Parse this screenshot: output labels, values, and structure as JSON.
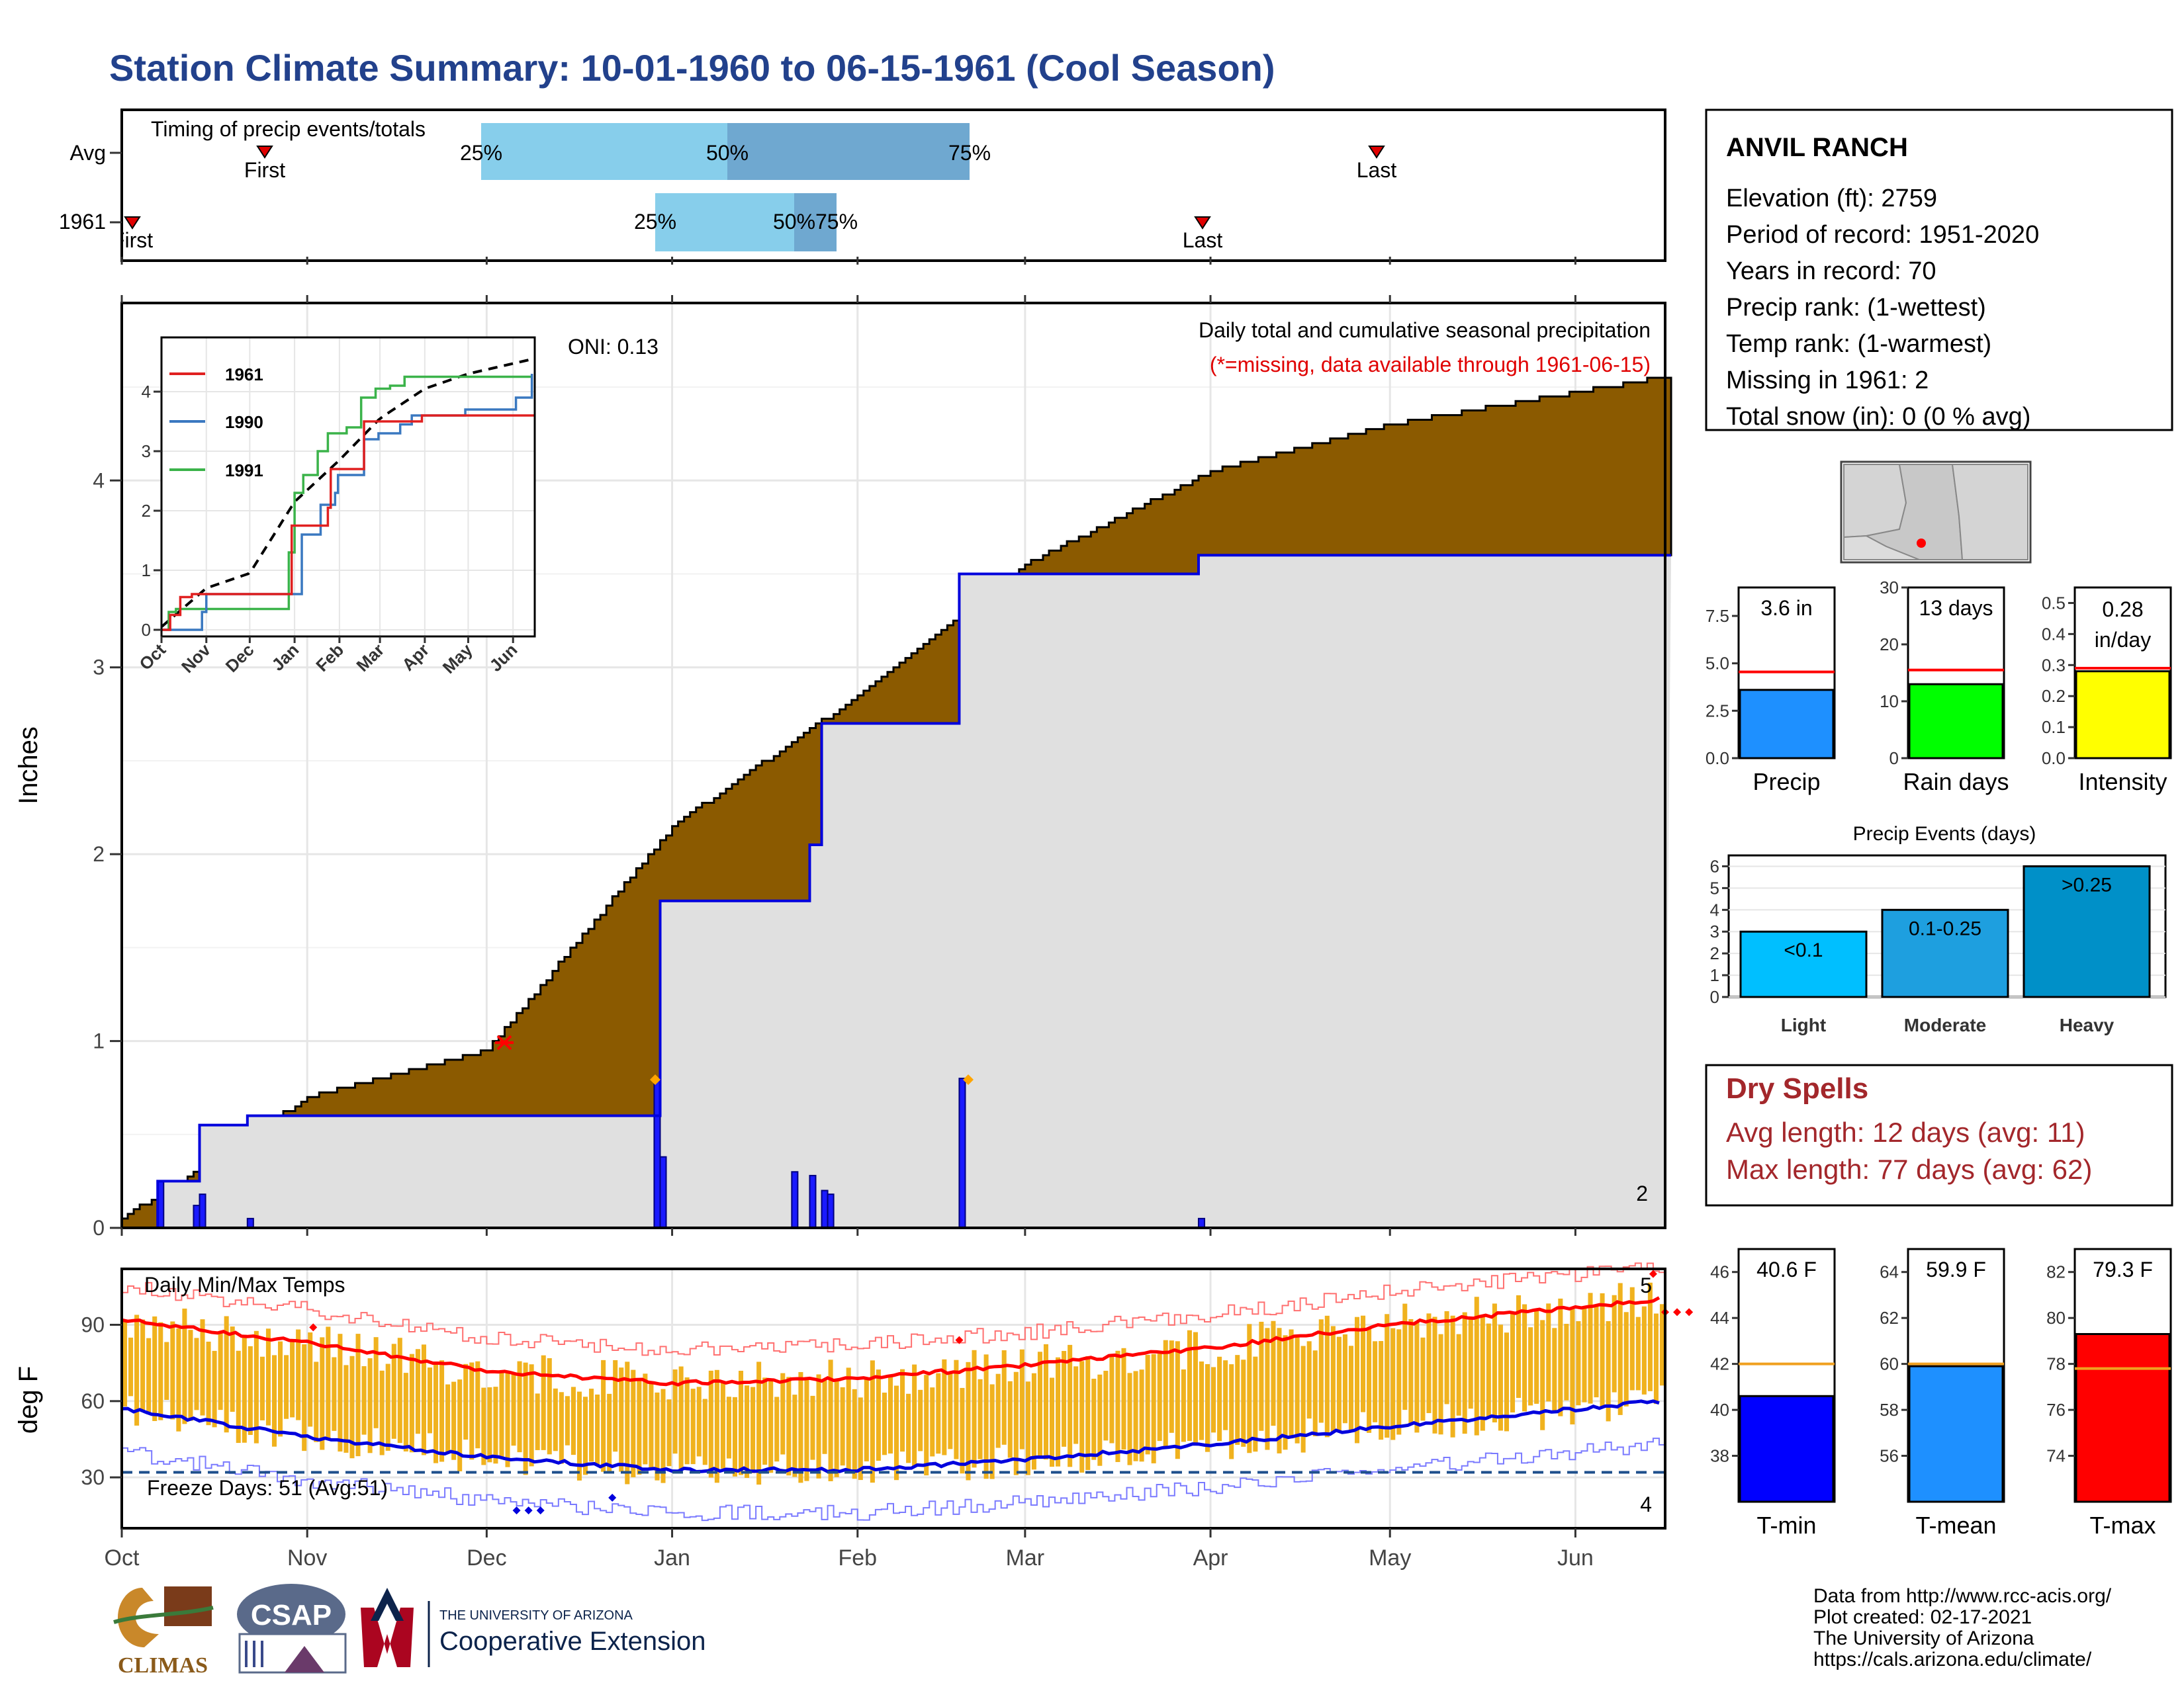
{
  "title": "Station Climate Summary: 10-01-1960 to 06-15-1961 (Cool Season)",
  "timing": {
    "label": "Timing of precip events/totals",
    "row_labels": [
      "Avg",
      "1961"
    ],
    "avg": {
      "first_label": "First",
      "last_label": "Last",
      "q25": "25%",
      "q50": "50%",
      "q75": "75%"
    },
    "y1961": {
      "first_label": "First",
      "last_label": "Last",
      "q25": "25%",
      "q50": "50%",
      "q75": "75%"
    }
  },
  "station": {
    "name": "ANVIL RANCH",
    "lines": [
      "Elevation (ft): 2759",
      "Period of record: 1951-2020",
      "Years in record: 70",
      "Precip rank:  (1-wettest)",
      "Temp rank:  (1-warmest)",
      "Missing in 1961: 2",
      "Total snow (in): 0 (0 % avg)"
    ]
  },
  "precip_panel": {
    "ylabel": "Inches",
    "header": "Daily total and cumulative seasonal precipitation",
    "note": "(*=missing, data available through 1961-06-15)",
    "oni": "ONI: 0.13",
    "missing_count": "2",
    "inset_legend": [
      "1961",
      "1990",
      "1991"
    ],
    "inset_months": [
      "Oct",
      "Nov",
      "Dec",
      "Jan",
      "Feb",
      "Mar",
      "Apr",
      "May",
      "Jun"
    ]
  },
  "temp_panel": {
    "ylabel": "deg F",
    "header": "Daily Min/Max Temps",
    "freeze_text": "Freeze Days: 51 (Avg:51)",
    "hot_count": "5",
    "cold_count": "4"
  },
  "months": [
    "Oct",
    "Nov",
    "Dec",
    "Jan",
    "Feb",
    "Mar",
    "Apr",
    "May",
    "Jun"
  ],
  "bars_top": {
    "precip": {
      "label": "Precip",
      "value_text": "3.6 in"
    },
    "raindays": {
      "label": "Rain days",
      "value_text": "13 days"
    },
    "intensity": {
      "label": "Intensity",
      "value_text": "0.28",
      "unit_text": "in/day"
    }
  },
  "events": {
    "title": "Precip Events (days)",
    "bars": [
      {
        "label": "Light",
        "text": "<0.1"
      },
      {
        "label": "Moderate",
        "text": "0.1-0.25"
      },
      {
        "label": "Heavy",
        "text": ">0.25"
      }
    ]
  },
  "dry": {
    "title": "Dry Spells",
    "avg": "Avg length: 12 days (avg: 11)",
    "max": "Max length: 77 days (avg: 62)"
  },
  "temp_bars": {
    "tmin": {
      "label": "T-min",
      "value_text": "40.6 F"
    },
    "tmean": {
      "label": "T-mean",
      "value_text": "59.9 F"
    },
    "tmax": {
      "label": "T-max",
      "value_text": "79.3 F"
    }
  },
  "footer": {
    "lines": [
      "Data from http://www.rcc-acis.org/",
      "Plot created: 02-17-2021",
      "The University of Arizona",
      "https://cals.arizona.edu/climate/"
    ],
    "logo_climas": "CLIMAS",
    "logo_csap": "CSAP",
    "ua_small": "THE UNIVERSITY OF ARIZONA",
    "ua_big": "Cooperative Extension"
  },
  "colors": {
    "title": "#22418c",
    "cum_above": "#8b5a00",
    "cum_below": "#008000",
    "daily": "#0000ff",
    "temp_bar": "#f0b21e",
    "dry": "#a3272b"
  },
  "chart_data": [
    {
      "type": "area",
      "title": "Daily total and cumulative seasonal precipitation",
      "ylabel": "Inches",
      "ylim": [
        0,
        5
      ],
      "x_domain": [
        "1960-10-01",
        "1961-06-15"
      ],
      "series": [
        {
          "name": "1961",
          "x": [
            "1960-10-01",
            "1960-10-07",
            "1960-10-14",
            "1960-10-22",
            "1960-12-29",
            "1960-12-30",
            "1961-01-21",
            "1961-01-24",
            "1961-01-26",
            "1961-02-18",
            "1961-03-30",
            "1961-06-15"
          ],
          "values": [
            0.0,
            0.25,
            0.55,
            0.6,
            0.6,
            1.75,
            1.75,
            2.05,
            2.7,
            3.5,
            3.6,
            3.6
          ]
        },
        {
          "x": [
            "1960-10-01",
            "1960-11-01",
            "1960-12-01",
            "1961-01-01",
            "1961-02-01",
            "1961-03-01",
            "1961-04-01",
            "1961-05-01",
            "1961-06-15"
          ],
          "values": [
            0.05,
            0.7,
            0.95,
            2.15,
            2.85,
            3.55,
            4.05,
            4.3,
            4.55
          ]
        }
      ],
      "daily_bars": [
        {
          "x": "1960-10-07",
          "value": 0.25
        },
        {
          "x": "1960-10-13",
          "value": 0.12
        },
        {
          "x": "1960-10-14",
          "value": 0.18
        },
        {
          "x": "1960-10-22",
          "value": 0.05
        },
        {
          "x": "1960-12-29",
          "value": 0.8
        },
        {
          "x": "1960-12-30",
          "value": 0.38
        },
        {
          "x": "1961-01-21",
          "value": 0.3
        },
        {
          "x": "1961-01-24",
          "value": 0.28
        },
        {
          "x": "1961-01-26",
          "value": 0.2
        },
        {
          "x": "1961-01-27",
          "value": 0.18
        },
        {
          "x": "1961-02-18",
          "value": 0.8
        },
        {
          "x": "1961-03-30",
          "value": 0.05
        }
      ]
    },
    {
      "type": "line",
      "title": "Daily Min/Max Temps",
      "ylabel": "deg F",
      "ylim": [
        10,
        112
      ],
      "x_domain": [
        "1960-10-01",
        "1961-06-15"
      ],
      "series": [
        {
          "x": [
            "1960-10-01",
            "1960-11-01",
            "1960-12-01",
            "1961-01-01",
            "1961-02-01",
            "1961-03-01",
            "1961-04-01",
            "1961-05-01",
            "1961-06-15"
          ],
          "values": [
            92,
            83,
            72,
            67,
            69,
            74,
            81,
            90,
            100
          ]
        },
        {
          "x": [
            "1960-10-01",
            "1960-11-01",
            "1960-12-01",
            "1961-01-01",
            "1961-02-01",
            "1961-03-01",
            "1961-04-01",
            "1961-05-01",
            "1961-06-15"
          ],
          "values": [
            57,
            46,
            38,
            33,
            33,
            37,
            43,
            50,
            60
          ]
        }
      ],
      "freeze_line": 32
    },
    {
      "type": "bar",
      "categories": [
        "Precip"
      ],
      "values": [
        3.6
      ],
      "average": 4.55,
      "ylim": [
        0,
        9
      ]
    },
    {
      "type": "bar",
      "categories": [
        "Rain days"
      ],
      "values": [
        13
      ],
      "average": 15.5,
      "ylim": [
        0,
        30
      ]
    },
    {
      "type": "bar",
      "categories": [
        "Intensity"
      ],
      "values": [
        0.28
      ],
      "average": 0.29,
      "ylim": [
        0,
        0.55
      ]
    },
    {
      "type": "bar",
      "title": "Precip Events (days)",
      "categories": [
        "Light",
        "Moderate",
        "Heavy"
      ],
      "values": [
        3,
        4,
        6
      ],
      "ylim": [
        0,
        6.5
      ]
    },
    {
      "type": "bar",
      "categories": [
        "T-min"
      ],
      "values": [
        40.6
      ],
      "average": 42.0,
      "ylim": [
        36,
        47
      ]
    },
    {
      "type": "bar",
      "categories": [
        "T-mean"
      ],
      "values": [
        59.9
      ],
      "average": 60.0,
      "ylim": [
        54,
        65
      ]
    },
    {
      "type": "bar",
      "categories": [
        "T-max"
      ],
      "values": [
        79.3
      ],
      "average": 77.8,
      "ylim": [
        72,
        83
      ]
    }
  ]
}
